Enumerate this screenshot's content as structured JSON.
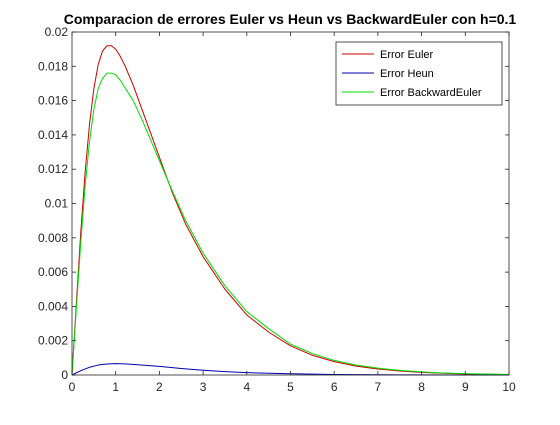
{
  "chart_data": {
    "type": "line",
    "title": "Comparacion de errores Euler vs Heun vs BackwardEuler con h=0.1",
    "xlabel": "",
    "ylabel": "",
    "xlim": [
      0,
      10
    ],
    "ylim": [
      0,
      0.02
    ],
    "x_ticks": [
      0,
      1,
      2,
      3,
      4,
      5,
      6,
      7,
      8,
      9,
      10
    ],
    "x_tick_labels": [
      "0",
      "1",
      "2",
      "3",
      "4",
      "5",
      "6",
      "7",
      "8",
      "9",
      "10"
    ],
    "y_ticks": [
      0,
      0.002,
      0.004,
      0.006,
      0.008,
      0.01,
      0.012,
      0.014,
      0.016,
      0.018,
      0.02
    ],
    "y_tick_labels": [
      "0",
      "0.002",
      "0.004",
      "0.006",
      "0.008",
      "0.01",
      "0.012",
      "0.014",
      "0.016",
      "0.018",
      "0.02"
    ],
    "grid": false,
    "legend_position": "top-right",
    "series": [
      {
        "name": "Error Euler",
        "color": "#cc0000",
        "x": [
          0,
          0.1,
          0.2,
          0.3,
          0.4,
          0.5,
          0.6,
          0.7,
          0.8,
          0.9,
          1.0,
          1.1,
          1.2,
          1.4,
          1.6,
          1.8,
          2.0,
          2.3,
          2.6,
          3.0,
          3.5,
          4.0,
          4.5,
          5.0,
          5.5,
          6.0,
          6.5,
          7.0,
          7.5,
          8.0,
          8.5,
          9.0,
          9.5,
          10.0
        ],
        "values": [
          0,
          0.0042,
          0.0083,
          0.0118,
          0.0146,
          0.0167,
          0.0181,
          0.0189,
          0.0192,
          0.0192,
          0.019,
          0.0186,
          0.0181,
          0.0169,
          0.0155,
          0.0141,
          0.0127,
          0.0106,
          0.0088,
          0.0069,
          0.005,
          0.0035,
          0.0025,
          0.0017,
          0.00115,
          0.00078,
          0.00052,
          0.00035,
          0.00023,
          0.00015,
          0.0001,
          6e-05,
          4e-05,
          2e-05
        ]
      },
      {
        "name": "Error Heun",
        "color": "#0000aa",
        "x": [
          0,
          0.2,
          0.4,
          0.6,
          0.8,
          1.0,
          1.2,
          1.5,
          2.0,
          2.5,
          3.0,
          3.5,
          4.0,
          4.5,
          5.0,
          5.5,
          6.0,
          6.5,
          7.0,
          7.5,
          8.0,
          9.0,
          10.0
        ],
        "values": [
          0,
          0.00025,
          0.00045,
          0.00058,
          0.00064,
          0.00066,
          0.00065,
          0.0006,
          0.0005,
          0.00038,
          0.00028,
          0.0002,
          0.00014,
          0.0001,
          7e-05,
          5e-05,
          3e-05,
          2e-05,
          1.5e-05,
          1e-05,
          6e-06,
          3e-06,
          1e-06
        ]
      },
      {
        "name": "Error BackwardEuler",
        "color": "#00dd00",
        "x": [
          0,
          0.1,
          0.2,
          0.3,
          0.4,
          0.5,
          0.6,
          0.7,
          0.8,
          0.9,
          1.0,
          1.1,
          1.2,
          1.4,
          1.6,
          1.8,
          2.0,
          2.3,
          2.6,
          3.0,
          3.5,
          4.0,
          4.5,
          5.0,
          5.5,
          6.0,
          6.5,
          7.0,
          7.5,
          8.0,
          8.5,
          9.0,
          9.5,
          10.0
        ],
        "values": [
          0,
          0.0039,
          0.0077,
          0.011,
          0.0136,
          0.0155,
          0.0167,
          0.0173,
          0.0176,
          0.0176,
          0.0175,
          0.0172,
          0.0168,
          0.016,
          0.0149,
          0.0137,
          0.0125,
          0.0107,
          0.009,
          0.0071,
          0.0052,
          0.0037,
          0.0027,
          0.0018,
          0.00125,
          0.00085,
          0.00058,
          0.0004,
          0.00027,
          0.00018,
          0.00012,
          8e-05,
          5e-05,
          3e-05
        ]
      }
    ]
  }
}
